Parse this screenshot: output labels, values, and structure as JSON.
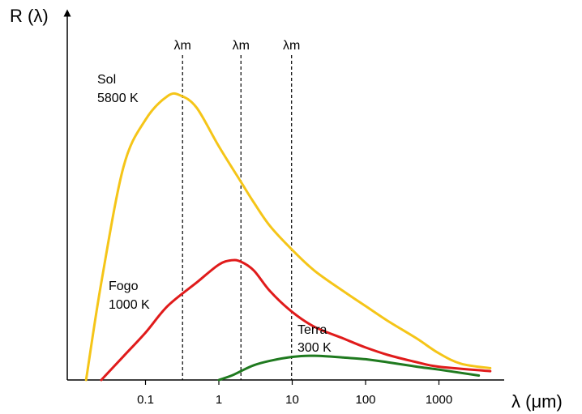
{
  "chart_data": {
    "type": "line",
    "title": "",
    "xlabel": "λ (μm)",
    "ylabel": "R (λ)",
    "x_scale": "log",
    "xlim": [
      0.012,
      12000
    ],
    "ylim": [
      0,
      1.0
    ],
    "grid": false,
    "x_ticks": [
      {
        "value": 0.1,
        "label": "0.1"
      },
      {
        "value": 1,
        "label": "1"
      },
      {
        "value": 10,
        "label": "10"
      },
      {
        "value": 100,
        "label": "100"
      },
      {
        "value": 1000,
        "label": "1000"
      }
    ],
    "markers": [
      {
        "x": 0.32,
        "label": "λm"
      },
      {
        "x": 2,
        "label": "λm"
      },
      {
        "x": 9.8,
        "label": "λm"
      }
    ],
    "series": [
      {
        "name_lines": [
          "Sol",
          "5800 K"
        ],
        "color": "#f5c518",
        "x": [
          0.0155,
          0.025,
          0.05,
          0.1,
          0.2,
          0.3,
          0.5,
          1,
          2,
          3,
          5,
          10,
          20,
          50,
          100,
          200,
          500,
          1000,
          2000,
          5000
        ],
        "y": [
          0.0,
          0.33,
          0.72,
          0.88,
          0.96,
          0.962,
          0.92,
          0.79,
          0.67,
          0.6,
          0.52,
          0.44,
          0.37,
          0.3,
          0.25,
          0.2,
          0.14,
          0.09,
          0.055,
          0.04
        ]
      },
      {
        "name_lines": [
          "Fogo",
          "1000 K"
        ],
        "color": "#e01b1b",
        "x": [
          0.025,
          0.05,
          0.1,
          0.2,
          0.5,
          1,
          1.5,
          2,
          3,
          5,
          10,
          20,
          50,
          100,
          200,
          500,
          1000,
          5000
        ],
        "y": [
          0.0,
          0.08,
          0.16,
          0.25,
          0.33,
          0.39,
          0.405,
          0.4,
          0.37,
          0.3,
          0.23,
          0.18,
          0.14,
          0.11,
          0.085,
          0.06,
          0.045,
          0.03
        ]
      },
      {
        "name_lines": [
          "Terra",
          "300 K"
        ],
        "color": "#1f7a1f",
        "x": [
          1,
          1.5,
          2,
          3,
          5,
          10,
          20,
          50,
          100,
          200,
          500,
          1000,
          3500
        ],
        "y": [
          0.0,
          0.015,
          0.03,
          0.05,
          0.065,
          0.078,
          0.082,
          0.076,
          0.07,
          0.06,
          0.045,
          0.035,
          0.015
        ]
      }
    ]
  }
}
